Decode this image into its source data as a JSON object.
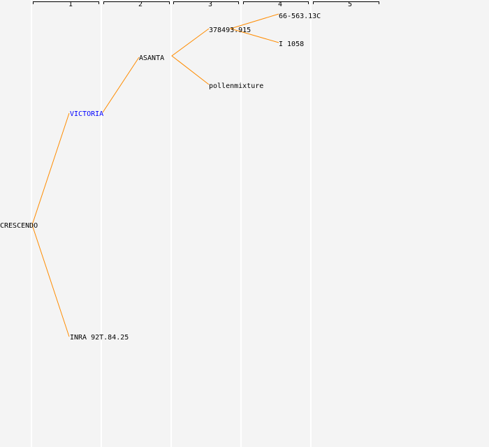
{
  "generations": [
    "1",
    "2",
    "3",
    "4",
    "5"
  ],
  "nodes": {
    "root": "CRESCENDO",
    "g1_a": "VICTORIA",
    "g1_b": "INRA 92T.84.25",
    "g2_a": "ASANTA",
    "g3_a": "378493.915",
    "g3_b": "pollenmixture",
    "g4_a": "66-563.13C",
    "g4_b": "I 1058"
  },
  "colors": {
    "edge": "#ff8c00",
    "highlight": "#0000ff",
    "text": "#000000",
    "background": "#f4f4f4",
    "column_line": "#ffffff"
  }
}
